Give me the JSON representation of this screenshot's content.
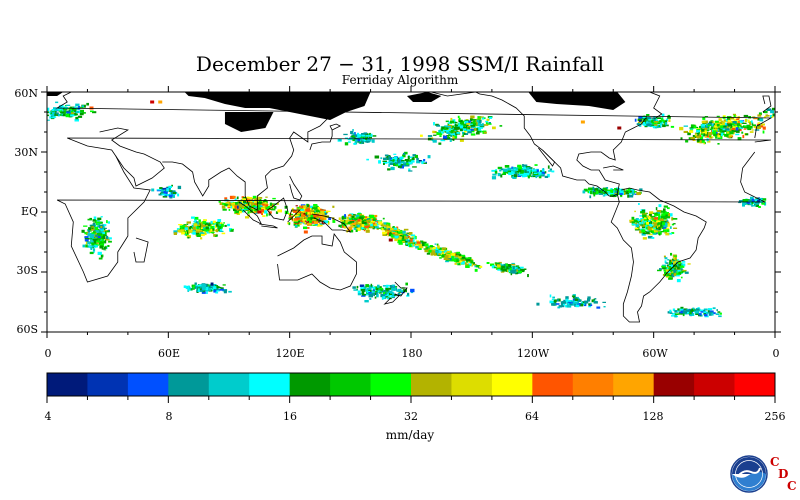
{
  "header": {
    "title": "December 27 − 31, 1998 SSM/I Rainfall",
    "subtitle": "Ferriday Algorithm"
  },
  "map": {
    "lat_labels": [
      "60N",
      "30N",
      "EQ",
      "30S",
      "60S"
    ],
    "lon_labels": [
      "0",
      "60E",
      "120E",
      "180",
      "120W",
      "60W",
      "0"
    ],
    "no_data_color": "#000000",
    "land_outline_color": "#000000"
  },
  "colorbar": {
    "colors": [
      "#001a7a",
      "#0033b3",
      "#0050ff",
      "#009999",
      "#00cccc",
      "#00ffff",
      "#009900",
      "#00c800",
      "#00ff00",
      "#b3b300",
      "#dddd00",
      "#ffff00",
      "#ff5500",
      "#ff7f00",
      "#ffa500",
      "#990000",
      "#cc0000",
      "#ff0000"
    ],
    "tick_labels": [
      "4",
      "8",
      "16",
      "32",
      "64",
      "128",
      "256"
    ],
    "units": "mm/day"
  },
  "logo": {
    "name": "NOAA",
    "letters": [
      "C",
      "D",
      "C"
    ]
  }
}
